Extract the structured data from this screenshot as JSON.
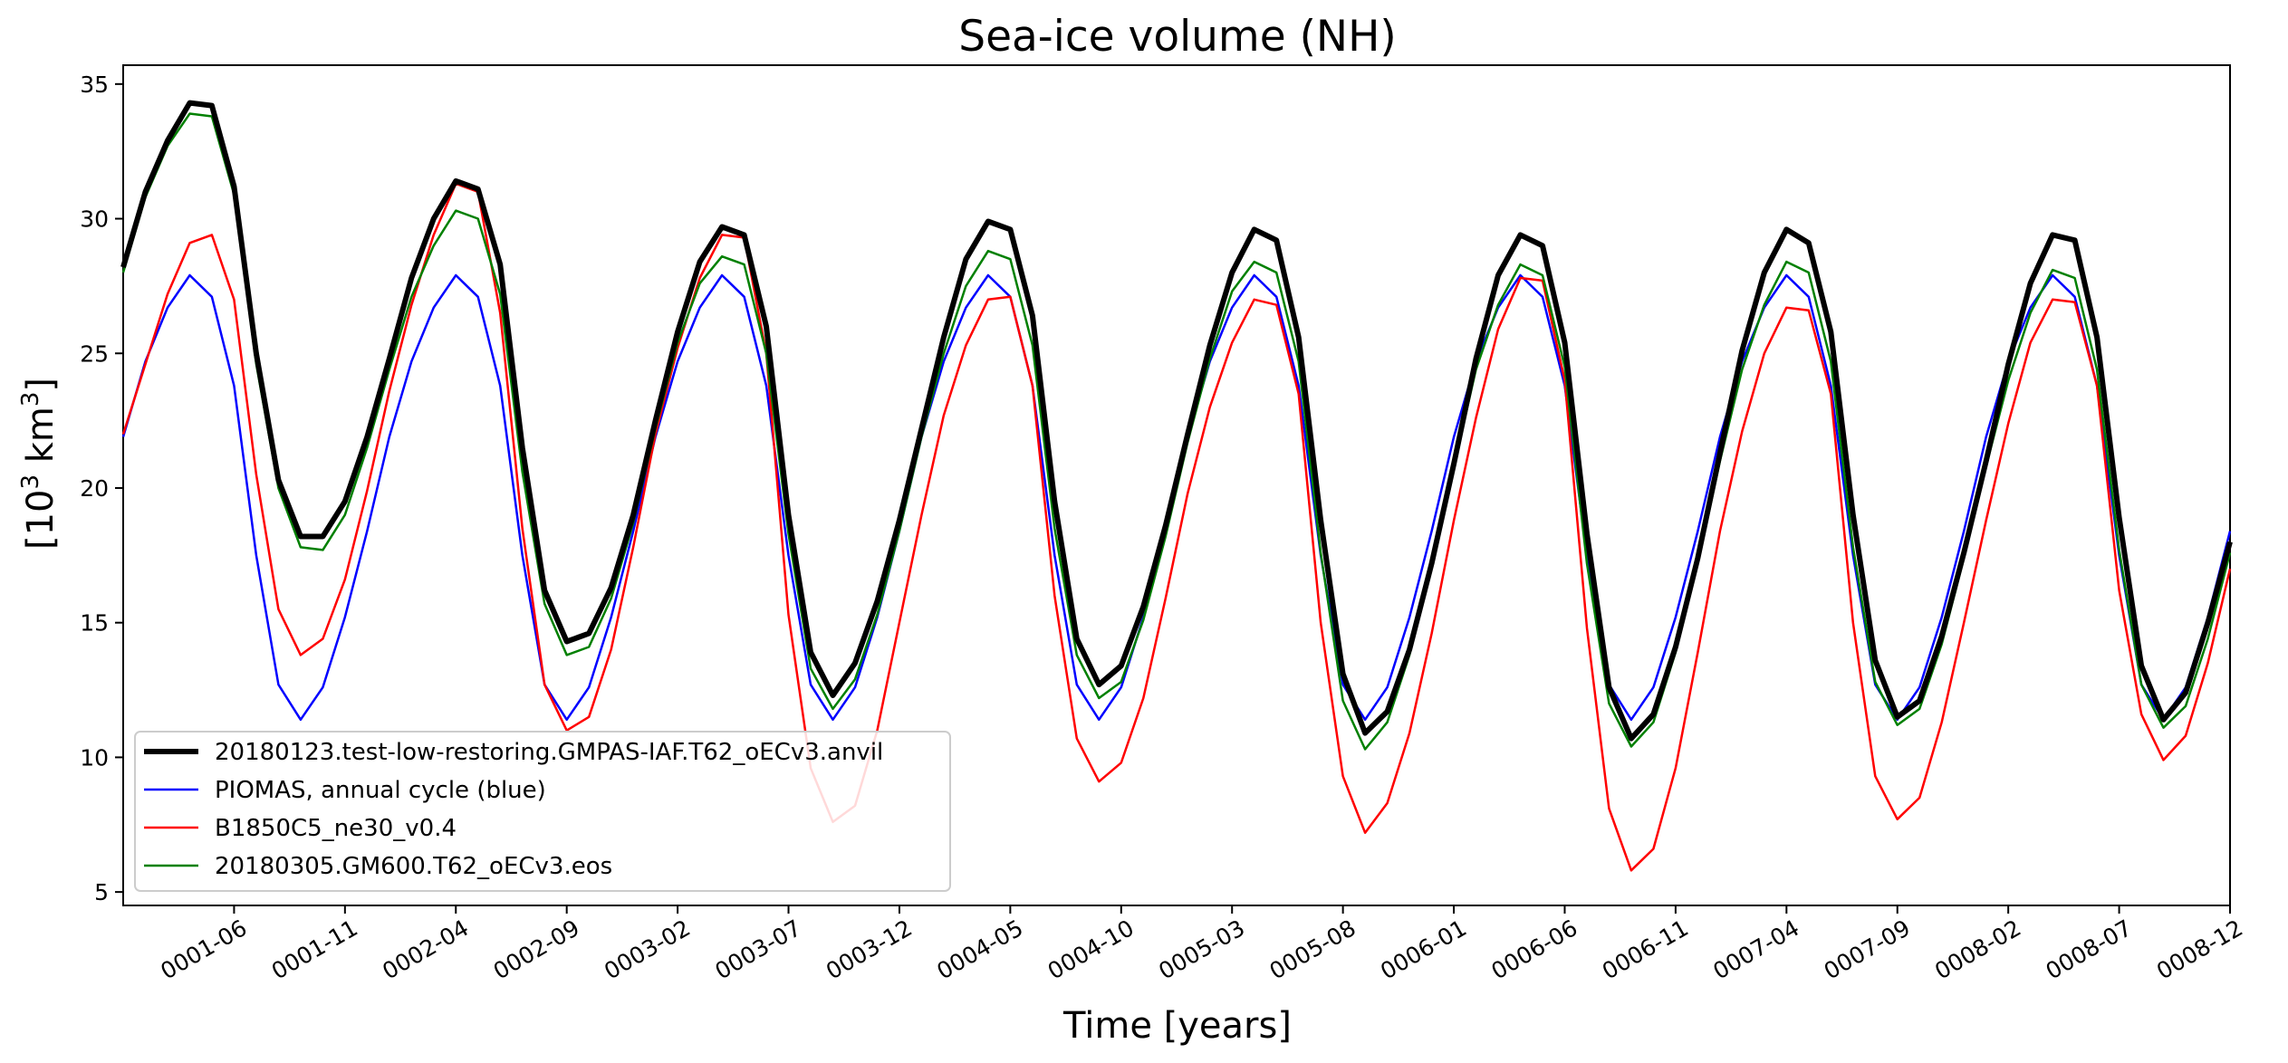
{
  "chart_data": {
    "type": "line",
    "title": "Sea-ice volume (NH)",
    "xlabel": "Time [years]",
    "ylabel": "[10",
    "ylabel_sup": "3",
    "ylabel_unit": " km",
    "ylabel_unit_sup": "3",
    "ylabel_close": "]",
    "ylim": [
      4.5,
      35.7
    ],
    "yticks": [
      5,
      10,
      15,
      20,
      25,
      30,
      35
    ],
    "x_month_range": [
      0,
      95
    ],
    "xticks": [
      {
        "m": 5,
        "label": "0001-06"
      },
      {
        "m": 10,
        "label": "0001-11"
      },
      {
        "m": 15,
        "label": "0002-04"
      },
      {
        "m": 20,
        "label": "0002-09"
      },
      {
        "m": 25,
        "label": "0003-02"
      },
      {
        "m": 30,
        "label": "0003-07"
      },
      {
        "m": 35,
        "label": "0003-12"
      },
      {
        "m": 40,
        "label": "0004-05"
      },
      {
        "m": 45,
        "label": "0004-10"
      },
      {
        "m": 50,
        "label": "0005-03"
      },
      {
        "m": 55,
        "label": "0005-08"
      },
      {
        "m": 60,
        "label": "0006-01"
      },
      {
        "m": 65,
        "label": "0006-06"
      },
      {
        "m": 70,
        "label": "0006-11"
      },
      {
        "m": 75,
        "label": "0007-04"
      },
      {
        "m": 80,
        "label": "0007-09"
      },
      {
        "m": 85,
        "label": "0008-02"
      },
      {
        "m": 90,
        "label": "0008-07"
      },
      {
        "m": 95,
        "label": "0008-12"
      }
    ],
    "legend_position": "lower-left",
    "series": [
      {
        "name": "20180123.test-low-restoring.GMPAS-IAF.T62_oECv3.anvil",
        "color": "#000000",
        "width": 6,
        "values": [
          28.2,
          31.0,
          32.9,
          34.3,
          34.2,
          31.2,
          25.0,
          20.3,
          18.2,
          18.2,
          19.5,
          21.9,
          24.8,
          27.8,
          30.0,
          31.4,
          31.1,
          28.3,
          21.5,
          16.2,
          14.3,
          14.6,
          16.3,
          19.0,
          22.5,
          25.8,
          28.4,
          29.7,
          29.4,
          26.0,
          19.0,
          13.9,
          12.3,
          13.5,
          15.8,
          18.8,
          22.2,
          25.6,
          28.5,
          29.9,
          29.6,
          26.4,
          19.5,
          14.4,
          12.7,
          13.4,
          15.6,
          18.6,
          22.0,
          25.3,
          28.0,
          29.6,
          29.2,
          25.6,
          18.8,
          13.1,
          10.9,
          11.7,
          14.0,
          17.2,
          20.9,
          24.8,
          27.9,
          29.4,
          29.0,
          25.4,
          18.3,
          12.6,
          10.7,
          11.6,
          14.1,
          17.4,
          21.3,
          25.1,
          28.0,
          29.6,
          29.1,
          25.8,
          19.0,
          13.6,
          11.5,
          12.1,
          14.5,
          17.6,
          21.0,
          24.6,
          27.6,
          29.4,
          29.2,
          25.6,
          18.9,
          13.4,
          11.4,
          12.4,
          15.0,
          18.0
        ]
      },
      {
        "name": "PIOMAS, annual cycle (blue)",
        "color": "#0000ff",
        "width": 2.5,
        "values": [
          21.9,
          24.7,
          26.7,
          27.9,
          27.1,
          23.8,
          17.5,
          12.7,
          11.4,
          12.6,
          15.2,
          18.4,
          21.9,
          24.7,
          26.7,
          27.9,
          27.1,
          23.8,
          17.5,
          12.7,
          11.4,
          12.6,
          15.2,
          18.4,
          21.9,
          24.7,
          26.7,
          27.9,
          27.1,
          23.8,
          17.5,
          12.7,
          11.4,
          12.6,
          15.2,
          18.4,
          21.9,
          24.7,
          26.7,
          27.9,
          27.1,
          23.8,
          17.5,
          12.7,
          11.4,
          12.6,
          15.2,
          18.4,
          21.9,
          24.7,
          26.7,
          27.9,
          27.1,
          23.8,
          17.5,
          12.7,
          11.4,
          12.6,
          15.2,
          18.4,
          21.9,
          24.7,
          26.7,
          27.9,
          27.1,
          23.8,
          17.5,
          12.7,
          11.4,
          12.6,
          15.2,
          18.4,
          21.9,
          24.7,
          26.7,
          27.9,
          27.1,
          23.8,
          17.5,
          12.7,
          11.4,
          12.6,
          15.2,
          18.4,
          21.9,
          24.7,
          26.7,
          27.9,
          27.1,
          23.8,
          17.5,
          12.7,
          11.4,
          12.6,
          15.2,
          18.4
        ]
      },
      {
        "name": "B1850C5_ne30_v0.4",
        "color": "#ff0000",
        "width": 2.5,
        "values": [
          22.0,
          24.6,
          27.2,
          29.1,
          29.4,
          27.0,
          20.5,
          15.5,
          13.8,
          14.4,
          16.6,
          19.9,
          23.6,
          26.8,
          29.4,
          31.3,
          31.0,
          26.5,
          18.5,
          12.7,
          11.0,
          11.5,
          14.0,
          17.8,
          22.0,
          25.2,
          27.8,
          29.4,
          29.3,
          25.0,
          15.3,
          9.6,
          7.6,
          8.2,
          11.0,
          15.0,
          19.0,
          22.7,
          25.3,
          27.0,
          27.1,
          23.8,
          16.0,
          10.7,
          9.1,
          9.8,
          12.2,
          15.9,
          19.8,
          23.0,
          25.4,
          27.0,
          26.8,
          23.5,
          15.0,
          9.3,
          7.2,
          8.3,
          10.9,
          14.6,
          18.8,
          22.6,
          25.9,
          27.8,
          27.7,
          24.0,
          14.8,
          8.1,
          5.8,
          6.6,
          9.6,
          13.9,
          18.4,
          22.1,
          25.0,
          26.7,
          26.6,
          23.5,
          15.0,
          9.3,
          7.7,
          8.5,
          11.3,
          15.0,
          18.8,
          22.4,
          25.4,
          27.0,
          26.9,
          23.8,
          16.2,
          11.6,
          9.9,
          10.8,
          13.5,
          17.0
        ]
      },
      {
        "name": "20180305.GM600.T62_oECv3.eos",
        "color": "#008000",
        "width": 2.5,
        "values": [
          28.0,
          30.8,
          32.7,
          33.9,
          33.8,
          30.9,
          24.6,
          20.0,
          17.8,
          17.7,
          19.0,
          21.5,
          24.4,
          27.1,
          29.0,
          30.3,
          30.0,
          27.2,
          20.6,
          15.7,
          13.8,
          14.1,
          15.9,
          18.7,
          22.2,
          25.4,
          27.6,
          28.6,
          28.3,
          25.0,
          18.3,
          13.3,
          11.8,
          12.9,
          15.3,
          18.4,
          21.9,
          25.0,
          27.5,
          28.8,
          28.5,
          25.3,
          18.5,
          13.8,
          12.2,
          12.8,
          15.1,
          18.2,
          21.7,
          24.8,
          27.3,
          28.4,
          28.0,
          24.7,
          17.6,
          12.1,
          10.3,
          11.3,
          13.8,
          17.1,
          20.8,
          24.4,
          26.8,
          28.3,
          27.9,
          24.5,
          17.2,
          12.0,
          10.4,
          11.3,
          13.9,
          17.2,
          21.0,
          24.4,
          26.8,
          28.4,
          28.0,
          24.7,
          17.8,
          12.8,
          11.2,
          11.8,
          14.2,
          17.4,
          20.8,
          24.0,
          26.5,
          28.1,
          27.8,
          24.4,
          17.7,
          12.7,
          11.1,
          11.9,
          14.4,
          17.6
        ]
      }
    ]
  }
}
